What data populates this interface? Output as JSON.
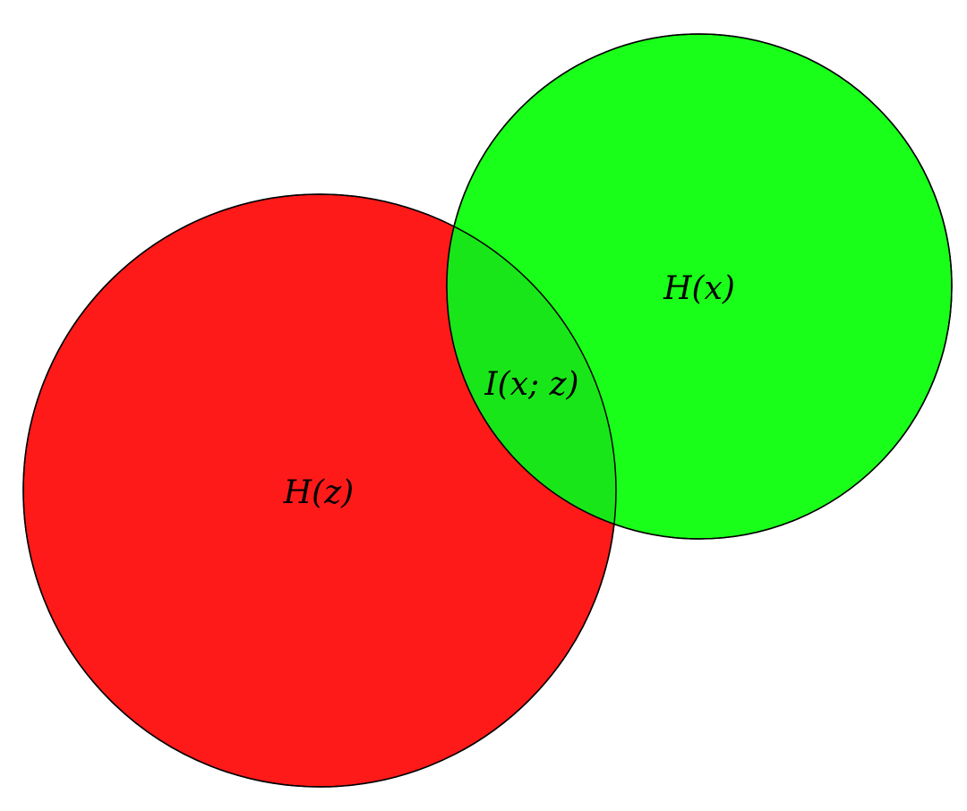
{
  "diagram": {
    "type": "venn",
    "sets": [
      {
        "id": "z",
        "label": "H(z)",
        "color": "#ff1a1a"
      },
      {
        "id": "x",
        "label": "H(x)",
        "color": "#1aff1a"
      }
    ],
    "intersection": {
      "label": "I(x; z)",
      "color": "#19e619"
    }
  }
}
